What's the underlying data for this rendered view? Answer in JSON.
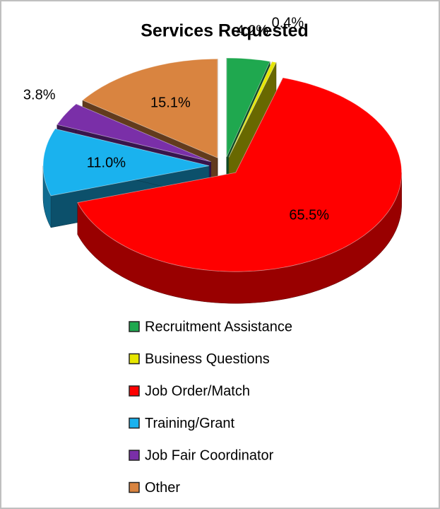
{
  "chart_data": {
    "type": "pie",
    "title": "Services Requested",
    "categories": [
      "Recruitment Assistance",
      "Business Questions",
      "Job Order/Match",
      "Training/Grant",
      "Job Fair Coordinator",
      "Other"
    ],
    "values": [
      4.2,
      0.4,
      65.5,
      11.0,
      3.8,
      15.1
    ],
    "value_labels": [
      "4.2%",
      "0.4%",
      "65.5%",
      "11.0%",
      "3.8%",
      "15.1%"
    ],
    "colors": [
      "#1fa84f",
      "#e6e600",
      "#ff0000",
      "#1ab2ee",
      "#7a2fa8",
      "#d98440"
    ],
    "legend": "bottom"
  }
}
